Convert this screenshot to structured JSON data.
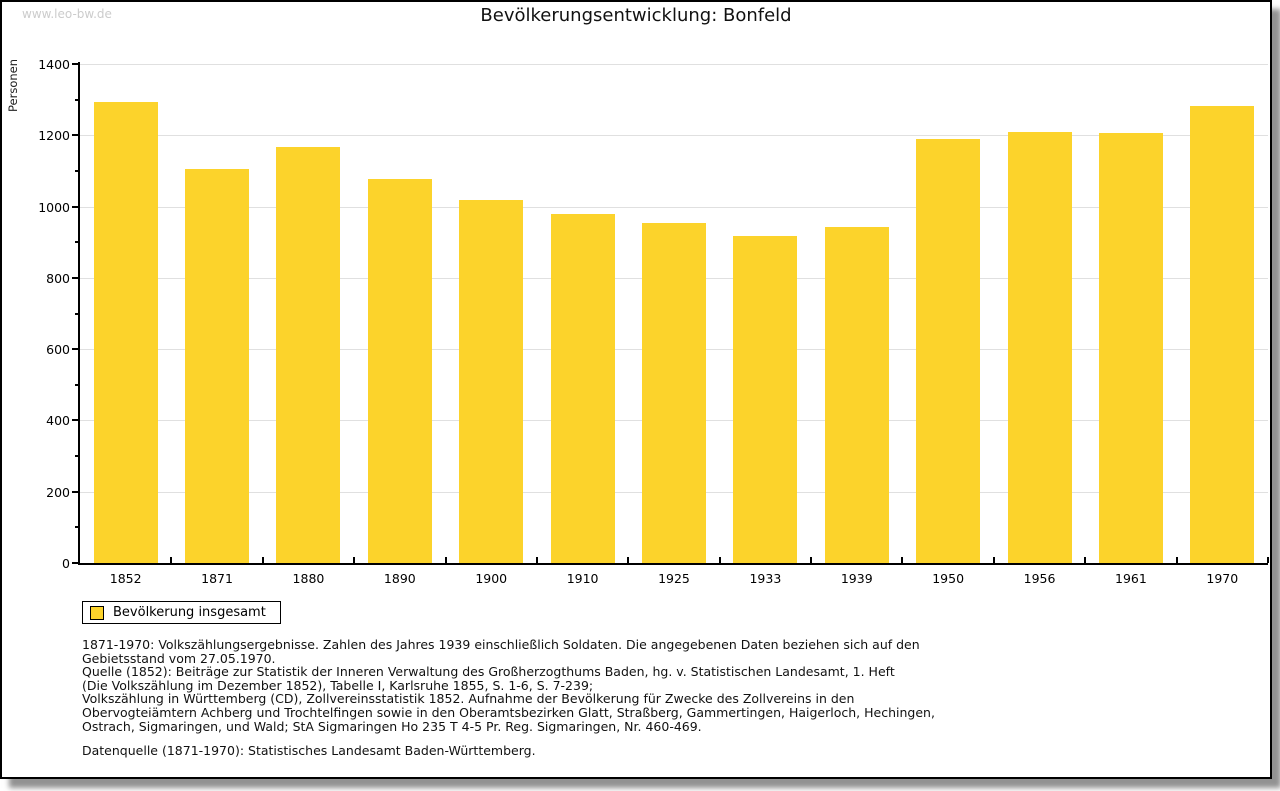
{
  "watermark": "www.leo-bw.de",
  "title": "Bevölkerungsentwicklung: Bonfeld",
  "chart_data": {
    "type": "bar",
    "title": "Bevölkerungsentwicklung: Bonfeld",
    "xlabel": "",
    "ylabel": "Personen",
    "categories": [
      "1852",
      "1871",
      "1880",
      "1890",
      "1900",
      "1910",
      "1925",
      "1933",
      "1939",
      "1950",
      "1956",
      "1961",
      "1970"
    ],
    "values": [
      1293,
      1105,
      1166,
      1077,
      1018,
      979,
      953,
      917,
      942,
      1190,
      1210,
      1206,
      1281
    ],
    "ylim": [
      0,
      1400
    ],
    "ytick_step": 200,
    "yminor_step": 100,
    "grid": true,
    "bar_color": "#fcd32b",
    "legend_position": "bottom-left",
    "legend_entries": [
      "Bevölkerung insgesamt"
    ]
  },
  "legend": {
    "label": "Bevölkerung insgesamt",
    "swatch_color": "#fcd32b"
  },
  "footer": {
    "lines": [
      "1871-1970: Volkszählungsergebnisse. Zahlen des Jahres 1939 einschließlich Soldaten. Die angegebenen Daten beziehen sich auf den",
      "Gebietsstand vom 27.05.1970.",
      "Quelle (1852): Beiträge zur Statistik der Inneren Verwaltung des Großherzogthums Baden, hg. v. Statistischen Landesamt, 1. Heft",
      "(Die Volkszählung im Dezember 1852), Tabelle I, Karlsruhe 1855, S. 1-6, S. 7-239;",
      "Volkszählung in Württemberg (CD), Zollvereinsstatistik 1852. Aufnahme der Bevölkerung für Zwecke des Zollvereins in den",
      "Obervogteiämtern Achberg und Trochtelfingen sowie in den Oberamtsbezirken Glatt, Straßberg, Gammertingen, Haigerloch, Hechingen,",
      "Ostrach, Sigmaringen, und Wald; StA Sigmaringen Ho 235 T 4-5 Pr. Reg. Sigmaringen, Nr. 460-469."
    ],
    "datasource": "Datenquelle (1871-1970): Statistisches Landesamt Baden-Württemberg."
  }
}
